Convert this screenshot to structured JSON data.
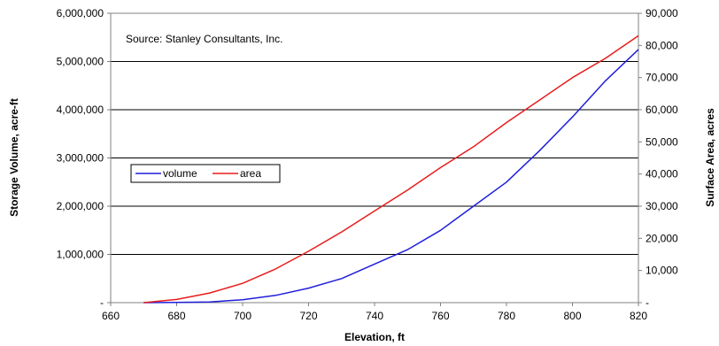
{
  "chart_data": {
    "type": "line",
    "title": "",
    "annotation": "Source: Stanley Consultants, Inc.",
    "xlabel": "Elevation, ft",
    "ylabel": "Storage Volume, acre-ft",
    "y2label": "Surface Area, acres",
    "xlim": [
      660,
      820
    ],
    "ylim": [
      0,
      6000000
    ],
    "y2lim": [
      0,
      90000
    ],
    "grid": true,
    "legend_position": "middle-left",
    "x_ticks": [
      "660",
      "680",
      "700",
      "720",
      "740",
      "760",
      "780",
      "800",
      "820"
    ],
    "y_ticks": [
      "-",
      "1,000,000",
      "2,000,000",
      "3,000,000",
      "4,000,000",
      "5,000,000",
      "6,000,000"
    ],
    "y2_ticks": [
      "-",
      "10,000",
      "20,000",
      "30,000",
      "40,000",
      "50,000",
      "60,000",
      "70,000",
      "80,000",
      "90,000"
    ],
    "series": [
      {
        "name": "volume",
        "axis": "left",
        "color": "#1f1fdc",
        "x": [
          670,
          680,
          690,
          700,
          710,
          720,
          730,
          740,
          750,
          760,
          770,
          780,
          790,
          800,
          810,
          820
        ],
        "y": [
          0,
          5000,
          15000,
          60000,
          150000,
          300000,
          500000,
          800000,
          1100000,
          1500000,
          2000000,
          2500000,
          3150000,
          3850000,
          4600000,
          5250000
        ]
      },
      {
        "name": "area",
        "axis": "right",
        "color": "#e81c1c",
        "x": [
          670,
          680,
          690,
          700,
          710,
          720,
          730,
          740,
          750,
          760,
          770,
          780,
          790,
          800,
          810,
          820
        ],
        "y": [
          0,
          1000,
          3000,
          6000,
          10500,
          16000,
          22000,
          28500,
          35000,
          42000,
          48500,
          56000,
          63000,
          70000,
          76000,
          83000
        ]
      }
    ]
  }
}
